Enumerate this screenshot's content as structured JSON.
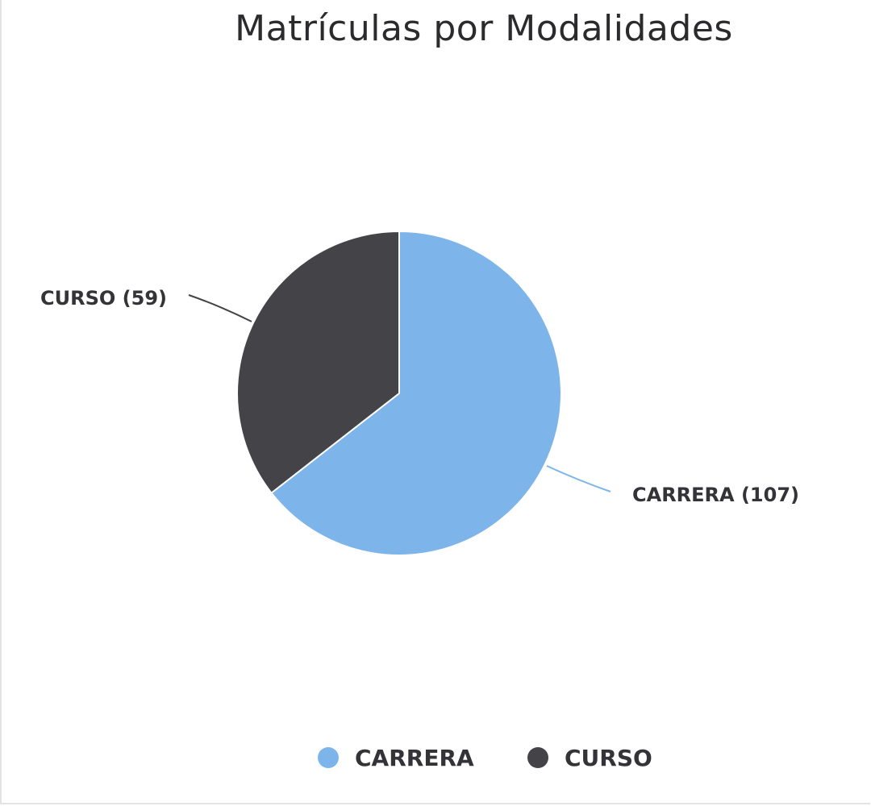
{
  "chart_data": {
    "type": "pie",
    "title": "Matrículas por Modalidades",
    "categories": [
      "CARRERA",
      "CURSO"
    ],
    "values": [
      107,
      59
    ],
    "data_labels": [
      "CARRERA (107)",
      "CURSO (59)"
    ],
    "colors": [
      "#7db5ea",
      "#434348"
    ],
    "legend": {
      "placement": "bottom-center",
      "entries": [
        "CARRERA",
        "CURSO"
      ]
    },
    "start_angle_deg": 0,
    "direction": "clockwise"
  }
}
